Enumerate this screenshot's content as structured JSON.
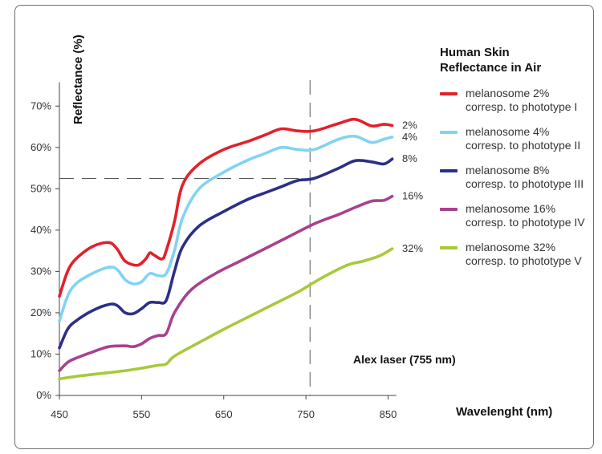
{
  "chart_data": {
    "type": "line",
    "ylabel": "Reflectance (%)",
    "xlabel": "Wavelenght (nm)",
    "x_ticks": [
      450,
      550,
      650,
      750,
      850
    ],
    "x_tick_labels": [
      "450",
      "550",
      "650",
      "750",
      "850"
    ],
    "y_ticks": [
      0,
      10,
      20,
      30,
      40,
      50,
      60,
      70
    ],
    "y_tick_labels": [
      "0%",
      "10%",
      "20%",
      "30%",
      "40%",
      "50%",
      "60%",
      "70%"
    ],
    "xlim": [
      450,
      860
    ],
    "ylim": [
      0,
      75
    ],
    "legend_title": "Human Skin Reflectance in Air",
    "legend_title_lines": [
      "Human Skin",
      "Reflectance in Air"
    ],
    "legend_position": "right",
    "annotation": "Alex laser (755 nm)",
    "reference_lines": {
      "vertical_x": 755,
      "horizontal_y": 52.5
    },
    "series": [
      {
        "name": "melanosome 2%",
        "label_line1": "melanosome 2%",
        "label_line2": "corresp. to phototype I",
        "end_label": "2%",
        "color": "#e3202a",
        "x": [
          450,
          460,
          470,
          490,
          510,
          520,
          530,
          545,
          555,
          560,
          565,
          575,
          580,
          590,
          600,
          620,
          650,
          680,
          700,
          720,
          740,
          760,
          790,
          810,
          830,
          845,
          855
        ],
        "y": [
          24,
          30,
          33,
          36,
          37,
          35.5,
          32.5,
          31.5,
          33,
          34.5,
          34,
          33,
          35,
          42,
          51,
          56,
          59.5,
          61.5,
          63,
          64.5,
          64,
          64,
          65.8,
          66.8,
          65.2,
          65.6,
          65.3
        ]
      },
      {
        "name": "melanosome 4%",
        "label_line1": "melanosome 4%",
        "label_line2": "corresp. to phototype II",
        "end_label": "4%",
        "color": "#82d3f2",
        "x": [
          450,
          460,
          470,
          490,
          510,
          520,
          530,
          540,
          550,
          560,
          570,
          580,
          590,
          600,
          620,
          650,
          680,
          700,
          720,
          740,
          760,
          790,
          810,
          830,
          845,
          855
        ],
        "y": [
          18,
          24,
          27,
          29.5,
          31,
          30.5,
          28,
          27,
          27.5,
          29.5,
          29,
          29.5,
          35,
          43,
          50,
          54,
          57,
          58.5,
          60,
          59.5,
          59.5,
          62,
          62.7,
          61.2,
          62,
          62.5
        ]
      },
      {
        "name": "melanosome 8%",
        "label_line1": "melanosome 8%",
        "label_line2": "corresp. to phototype III",
        "end_label": "8%",
        "color": "#2b2f86",
        "x": [
          450,
          460,
          470,
          490,
          510,
          520,
          530,
          540,
          550,
          560,
          570,
          580,
          590,
          600,
          620,
          650,
          680,
          700,
          720,
          740,
          760,
          790,
          810,
          830,
          845,
          855
        ],
        "y": [
          11.5,
          16,
          18,
          20.5,
          22,
          21.8,
          20,
          19.8,
          21,
          22.5,
          22.5,
          23,
          30,
          36,
          41,
          44.5,
          47.5,
          49,
          50.5,
          52,
          52.5,
          55,
          56.8,
          56.5,
          56,
          57.2
        ]
      },
      {
        "name": "melanosome 16%",
        "label_line1": "melanosome 16%",
        "label_line2": "corresp. to phototype IV",
        "end_label": "16%",
        "color": "#a8418e",
        "x": [
          450,
          460,
          470,
          490,
          510,
          530,
          540,
          550,
          560,
          570,
          580,
          590,
          610,
          640,
          670,
          700,
          730,
          760,
          790,
          810,
          830,
          845,
          855
        ],
        "y": [
          6,
          8,
          9,
          10.5,
          11.8,
          12,
          11.8,
          12.5,
          13.8,
          14.5,
          15,
          20,
          25.5,
          29.5,
          32.5,
          35.5,
          38.5,
          41.5,
          43.8,
          45.5,
          47,
          47.2,
          48.2
        ]
      },
      {
        "name": "melanosome 32%",
        "label_line1": "melanosome 32%",
        "label_line2": "corresp. to phototype V",
        "end_label": "32%",
        "color": "#a8c93a",
        "x": [
          450,
          470,
          500,
          530,
          550,
          570,
          580,
          590,
          620,
          650,
          680,
          710,
          740,
          770,
          800,
          820,
          840,
          855
        ],
        "y": [
          4,
          4.6,
          5.3,
          6,
          6.6,
          7.3,
          7.6,
          9.5,
          12.8,
          16,
          19,
          22,
          25,
          28.5,
          31.5,
          32.5,
          33.8,
          35.5
        ]
      }
    ]
  }
}
